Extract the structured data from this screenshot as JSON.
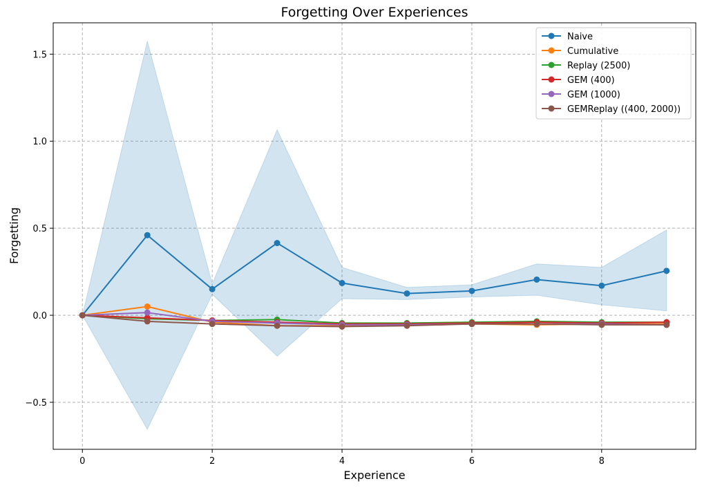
{
  "chart_data": {
    "type": "line",
    "title": "Forgetting Over Experiences",
    "xlabel": "Experience",
    "ylabel": "Forgetting",
    "xlim": [
      -0.45,
      9.45
    ],
    "ylim": [
      -0.77,
      1.68
    ],
    "xticks": [
      0,
      2,
      4,
      6,
      8
    ],
    "yticks": [
      -0.5,
      0.0,
      0.5,
      1.0,
      1.5
    ],
    "ytick_labels": [
      "−0.5",
      "0.0",
      "0.5",
      "1.0",
      "1.5"
    ],
    "grid": true,
    "legend_position": "top-right",
    "x": [
      0,
      1,
      2,
      3,
      4,
      5,
      6,
      7,
      8,
      9
    ],
    "series": [
      {
        "name": "Naive",
        "color": "#1f77b4",
        "values": [
          0.0,
          0.46,
          0.15,
          0.415,
          0.185,
          0.125,
          0.14,
          0.205,
          0.17,
          0.255
        ],
        "band_upper": [
          0.0,
          1.575,
          0.18,
          1.065,
          0.275,
          0.16,
          0.175,
          0.295,
          0.275,
          0.49
        ],
        "band_lower": [
          0.0,
          -0.655,
          0.12,
          -0.235,
          0.095,
          0.09,
          0.105,
          0.115,
          0.06,
          0.025
        ]
      },
      {
        "name": "Cumulative",
        "color": "#ff7f0e",
        "values": [
          0.0,
          0.05,
          -0.04,
          -0.06,
          -0.06,
          -0.055,
          -0.05,
          -0.055,
          -0.05,
          -0.05
        ]
      },
      {
        "name": "Replay (2500)",
        "color": "#2ca02c",
        "values": [
          0.0,
          -0.02,
          -0.03,
          -0.025,
          -0.045,
          -0.045,
          -0.04,
          -0.035,
          -0.04,
          -0.04
        ]
      },
      {
        "name": "GEM (400)",
        "color": "#d62728",
        "values": [
          0.0,
          -0.015,
          -0.03,
          -0.04,
          -0.05,
          -0.05,
          -0.045,
          -0.04,
          -0.045,
          -0.04
        ]
      },
      {
        "name": "GEM (1000)",
        "color": "#9467bd",
        "values": [
          0.0,
          0.015,
          -0.035,
          -0.045,
          -0.055,
          -0.055,
          -0.05,
          -0.05,
          -0.05,
          -0.055
        ]
      },
      {
        "name": "GEMReplay ((400, 2000))",
        "color": "#8c564b",
        "values": [
          0.0,
          -0.035,
          -0.05,
          -0.06,
          -0.065,
          -0.06,
          -0.05,
          -0.05,
          -0.055,
          -0.055
        ]
      }
    ]
  }
}
